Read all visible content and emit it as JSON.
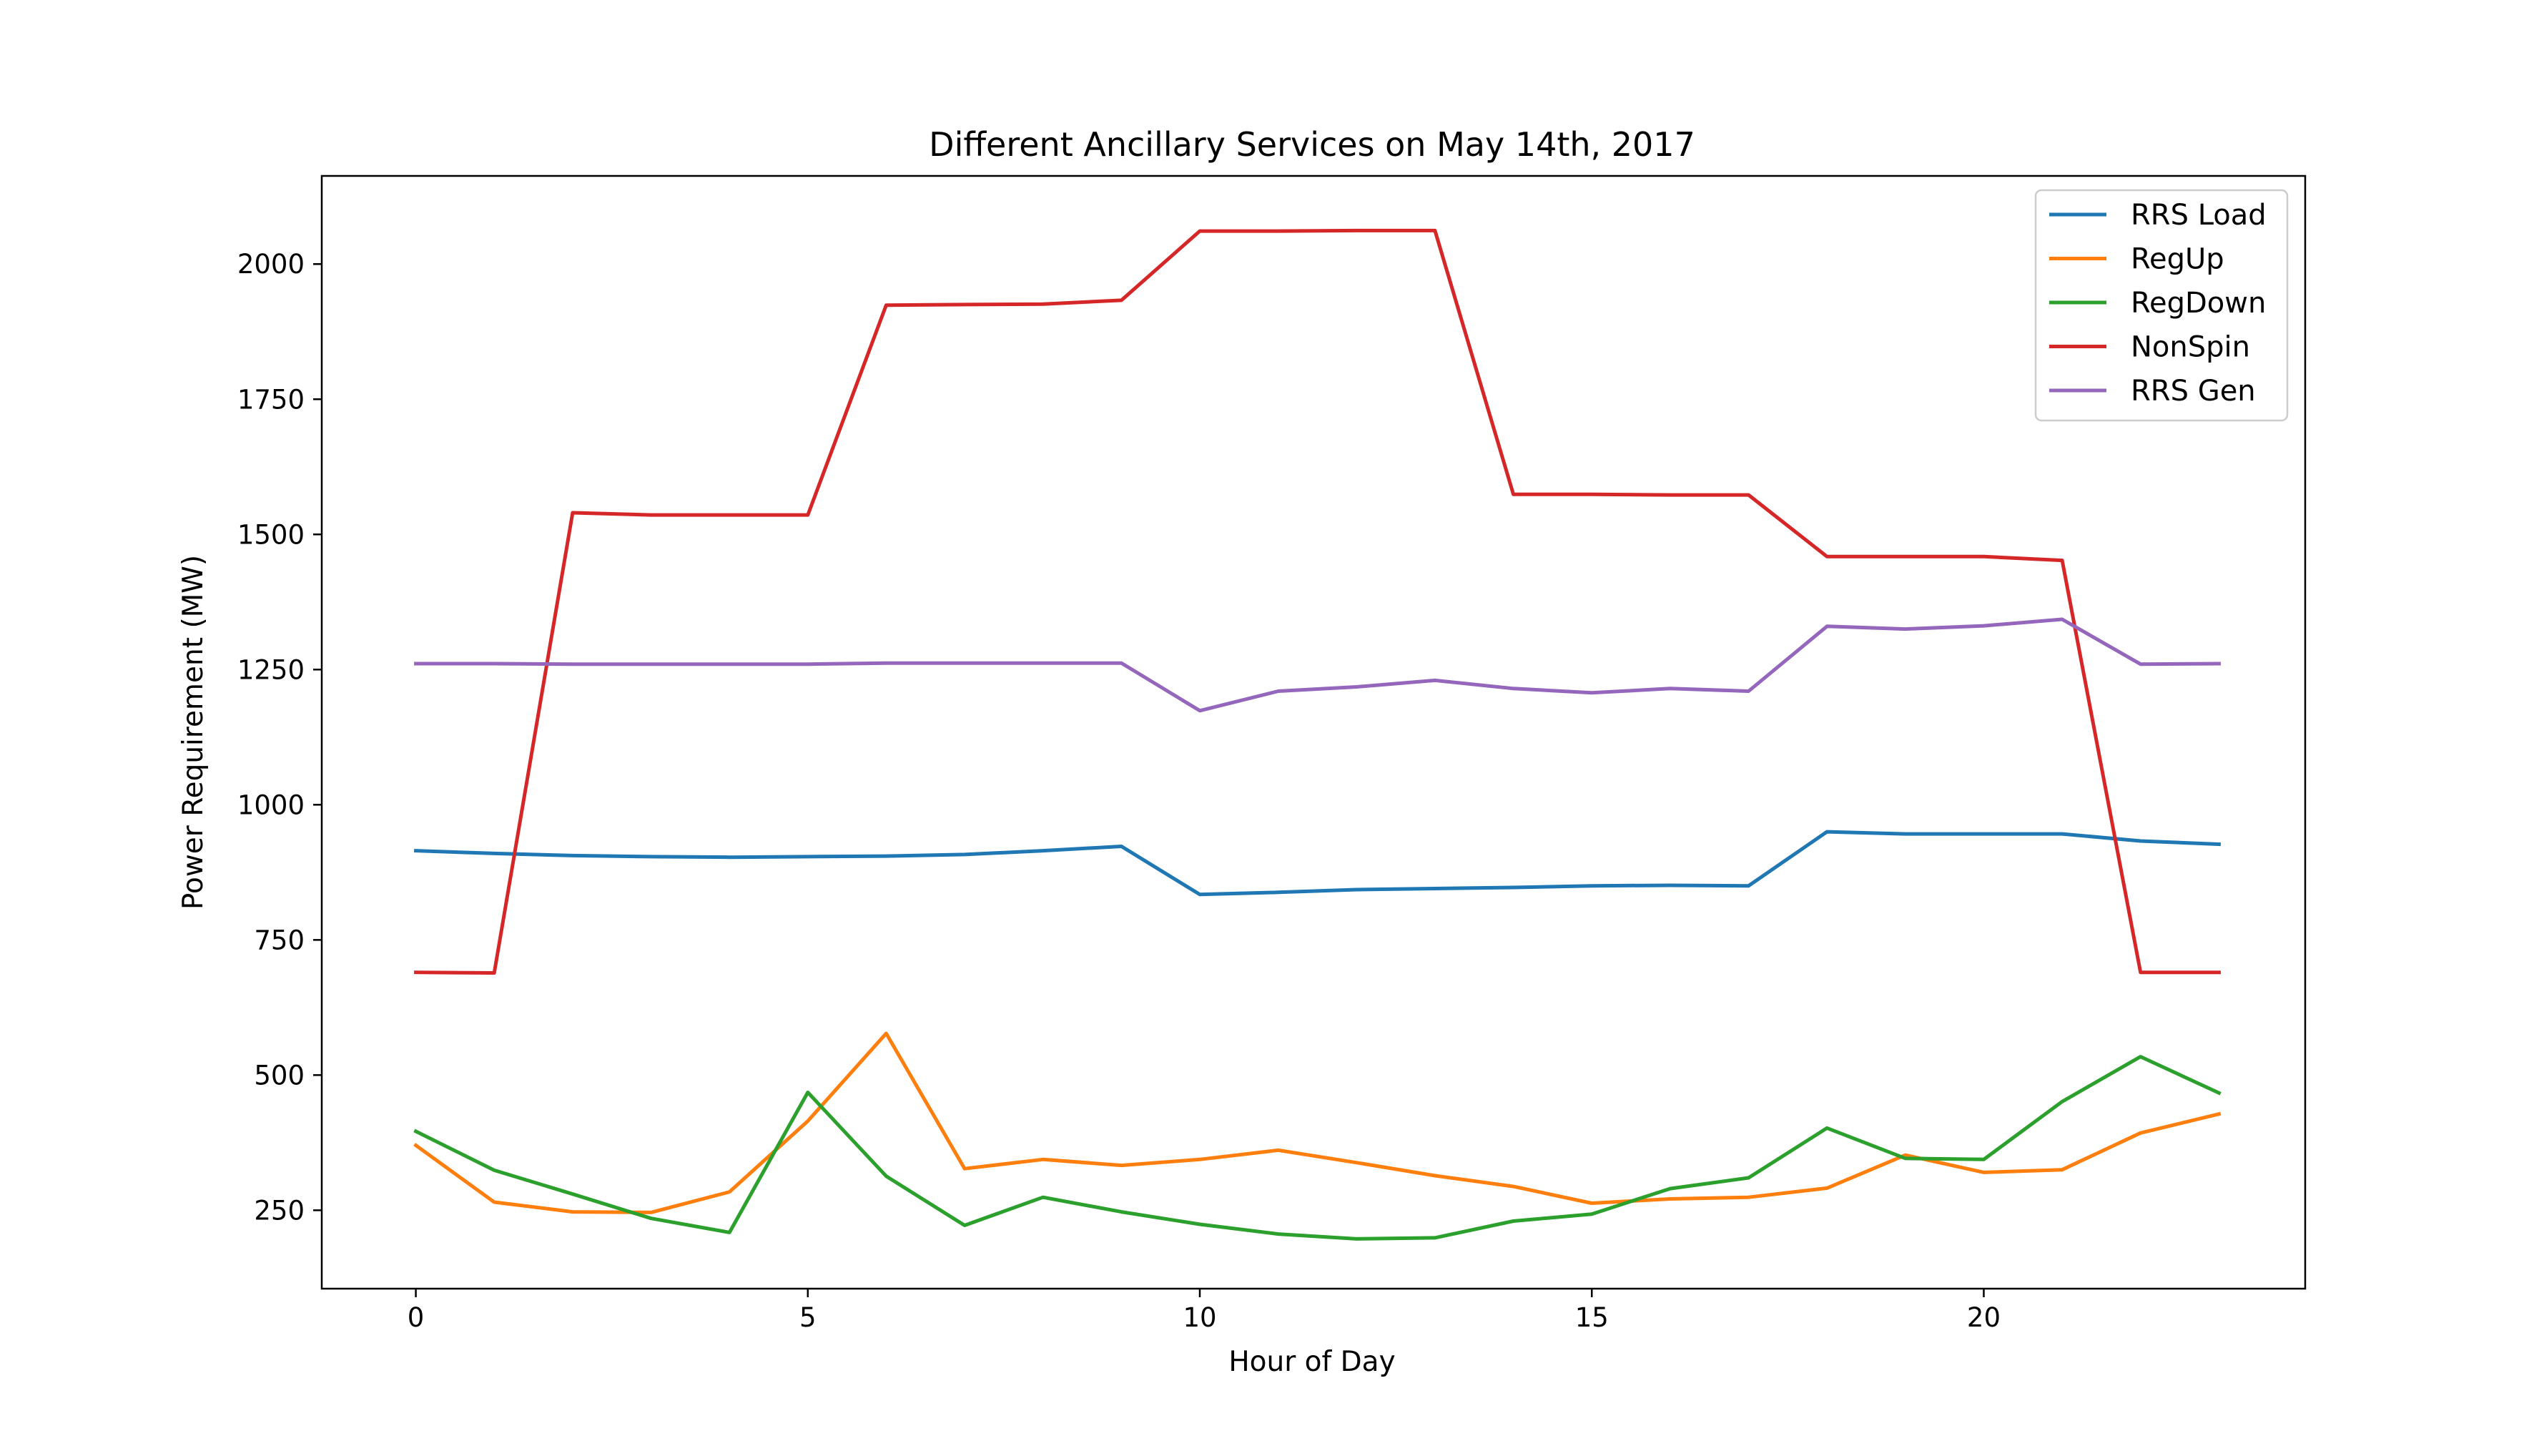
{
  "chart_data": {
    "type": "line",
    "title": "Different Ancillary Services on May 14th, 2017",
    "xlabel": "Hour of Day",
    "ylabel": "Power Requirement (MW)",
    "xlim": [
      -1.2,
      24.1
    ],
    "ylim": [
      105,
      2163
    ],
    "xticks": [
      0,
      5,
      10,
      15,
      20
    ],
    "yticks": [
      250,
      500,
      750,
      1000,
      1250,
      1500,
      1750,
      2000
    ],
    "grid": false,
    "legend_position": "top-right",
    "x": [
      0,
      1,
      2,
      3,
      4,
      5,
      6,
      7,
      8,
      9,
      10,
      11,
      12,
      13,
      14,
      15,
      16,
      17,
      18,
      19,
      20,
      21,
      22,
      23
    ],
    "series": [
      {
        "name": "RRS Load",
        "color": "#1f77b4",
        "values": [
          915,
          910,
          906,
          904,
          903,
          904,
          905,
          908,
          915,
          923,
          834,
          838,
          843,
          845,
          847,
          850,
          851,
          850,
          950,
          946,
          946,
          946,
          933,
          927
        ]
      },
      {
        "name": "RegUp",
        "color": "#ff7f0e",
        "values": [
          370,
          265,
          247,
          246,
          284,
          415,
          577,
          327,
          344,
          333,
          344,
          361,
          338,
          314,
          294,
          263,
          271,
          274,
          291,
          352,
          320,
          325,
          393,
          428
        ]
      },
      {
        "name": "RegDown",
        "color": "#2ca02c",
        "values": [
          396,
          324,
          280,
          235,
          209,
          468,
          313,
          222,
          274,
          247,
          224,
          206,
          197,
          199,
          230,
          243,
          290,
          310,
          402,
          346,
          344,
          451,
          534,
          467
        ]
      },
      {
        "name": "NonSpin",
        "color": "#d62728",
        "values": [
          690,
          689,
          1540,
          1536,
          1536,
          1536,
          1924,
          1925,
          1926,
          1933,
          2061,
          2061,
          2062,
          2062,
          1574,
          1574,
          1573,
          1573,
          1459,
          1459,
          1459,
          1452,
          690,
          690
        ]
      },
      {
        "name": "RRS Gen",
        "color": "#9467bd",
        "values": [
          1261,
          1261,
          1260,
          1260,
          1260,
          1260,
          1262,
          1262,
          1262,
          1262,
          1174,
          1210,
          1218,
          1230,
          1215,
          1207,
          1215,
          1210,
          1330,
          1325,
          1331,
          1343,
          1260,
          1261
        ]
      }
    ]
  }
}
